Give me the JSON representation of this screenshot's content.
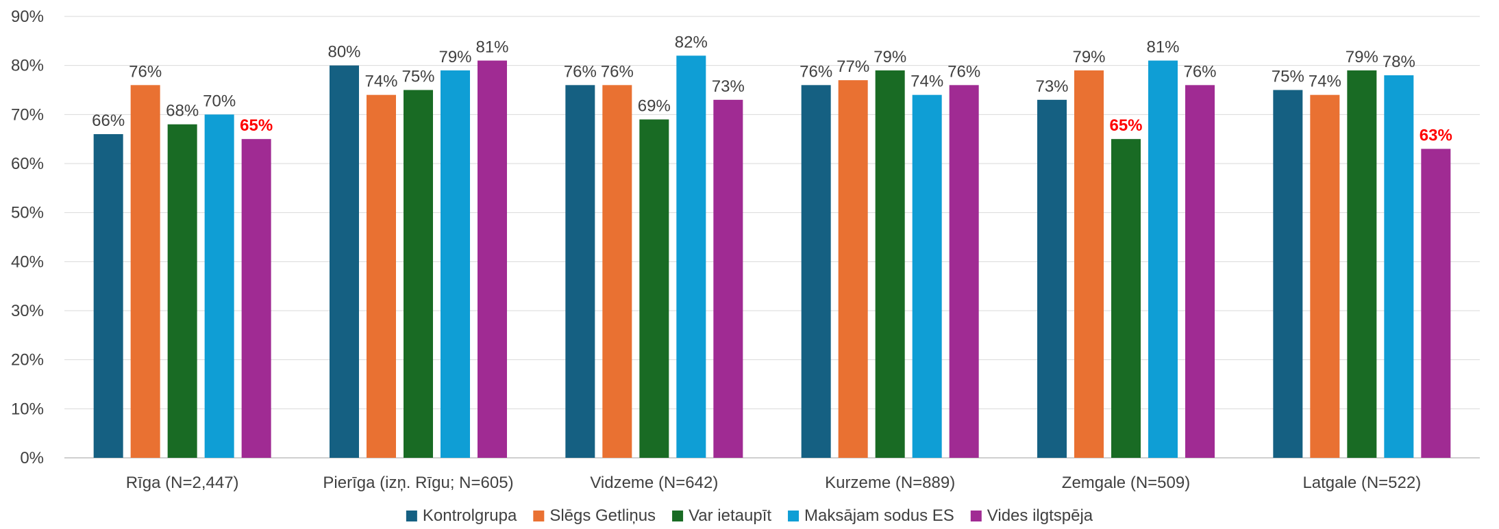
{
  "chart_data": {
    "type": "bar",
    "categories": [
      "Rīga (N=2,447)",
      "Pierīga (izņ. Rīgu; N=605)",
      "Vidzeme (N=642)",
      "Kurzeme (N=889)",
      "Zemgale (N=509)",
      "Latgale (N=522)"
    ],
    "series": [
      {
        "name": "Kontrolgrupa",
        "color": "#156082",
        "values": [
          66,
          80,
          76,
          76,
          73,
          75
        ],
        "labels": [
          "66%",
          "80%",
          "76%",
          "76%",
          "73%",
          "75%"
        ]
      },
      {
        "name": "Slēgs Getliņus",
        "color": "#E97132",
        "values": [
          76,
          74,
          76,
          77,
          79,
          74
        ],
        "labels": [
          "76%",
          "74%",
          "76%",
          "77%",
          "79%",
          "74%"
        ]
      },
      {
        "name": "Var ietaupīt",
        "color": "#196B24",
        "values": [
          68,
          75,
          69,
          79,
          65,
          79
        ],
        "labels": [
          "68%",
          "75%",
          "69%",
          "79%",
          "65%",
          "79%"
        ]
      },
      {
        "name": "Maksājam sodus ES",
        "color": "#0F9ED5",
        "values": [
          70,
          79,
          82,
          74,
          81,
          78
        ],
        "labels": [
          "70%",
          "79%",
          "82%",
          "74%",
          "81%",
          "78%"
        ]
      },
      {
        "name": "Vides ilgtspēja",
        "color": "#A02B93",
        "values": [
          65,
          81,
          73,
          76,
          76,
          63
        ],
        "labels": [
          "65%",
          "81%",
          "73%",
          "76%",
          "76%",
          "63%"
        ]
      }
    ],
    "highlighted_labels": [
      {
        "series": 4,
        "category": 0
      },
      {
        "series": 2,
        "category": 4
      },
      {
        "series": 4,
        "category": 5
      }
    ],
    "highlight_color": "#FF0000",
    "yticks": [
      "0%",
      "10%",
      "20%",
      "30%",
      "40%",
      "50%",
      "60%",
      "70%",
      "80%",
      "90%"
    ],
    "ylim": [
      0,
      90
    ],
    "grid": true,
    "legend_position": "bottom",
    "title": "",
    "xlabel": "",
    "ylabel": ""
  }
}
